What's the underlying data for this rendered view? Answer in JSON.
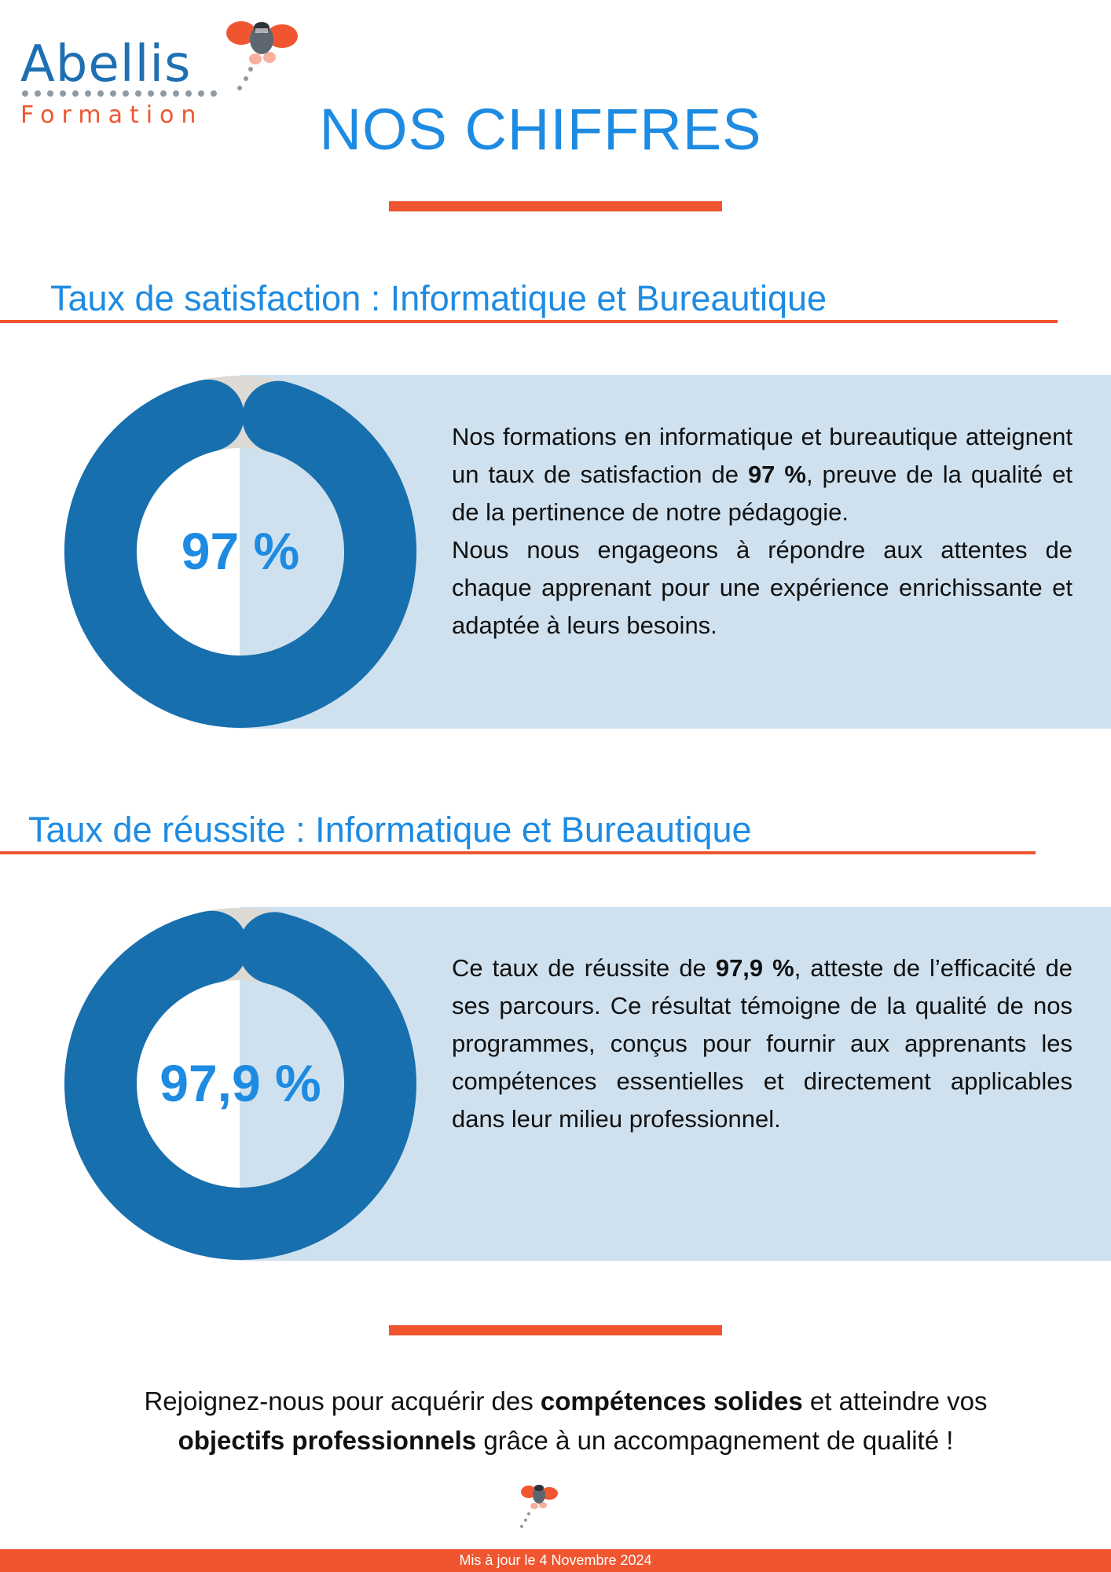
{
  "brand": {
    "name": "Abellis",
    "subtitle": "Formation",
    "color_blue": "#1e6fb3",
    "color_orange": "#ef5630",
    "mascot": "bee-mascot-icon"
  },
  "page": {
    "title": "NOS CHIFFRES",
    "accent_color": "#ef5630",
    "title_color": "#1e8be2"
  },
  "sections": [
    {
      "title": "Taux de satisfaction : Informatique et Bureautique",
      "value_label": "97 %",
      "value_fraction": 0.97,
      "text": {
        "p1_before": "Nos formations en informatique et bureautique atteignent un taux de satisfaction de ",
        "p1_bold": "97 %",
        "p1_after": ", preuve de la qualité et de la pertinence de notre pédagogie.",
        "p2": "Nous nous engageons à répondre aux attentes de chaque apprenant pour une expérience enrichissante et adaptée à leurs besoins."
      }
    },
    {
      "title": "Taux de réussite : Informatique et Bureautique",
      "value_label": "97,9 %",
      "value_fraction": 0.979,
      "text": {
        "p1_before": "Ce taux de réussite de ",
        "p1_bold": "97,9 %",
        "p1_after": ", atteste de l’efficacité de ses parcours. Ce résultat témoigne de  la qualité de nos programmes, conçus pour fournir aux apprenants les compétences essentielles et directement applicables dans leur milieu professionnel."
      }
    }
  ],
  "cta": {
    "part1": "Rejoignez-nous pour acquérir des ",
    "bold1": "compétences solides",
    "part2": " et atteindre vos ",
    "bold2": "objectifs professionnels",
    "part3": " grâce à un accompagnement de qualité !"
  },
  "footer": {
    "updated": "Mis à jour le 4 Novembre 2024"
  },
  "donut_colors": {
    "fill": "#176fae",
    "track": "#ddd9d4"
  }
}
